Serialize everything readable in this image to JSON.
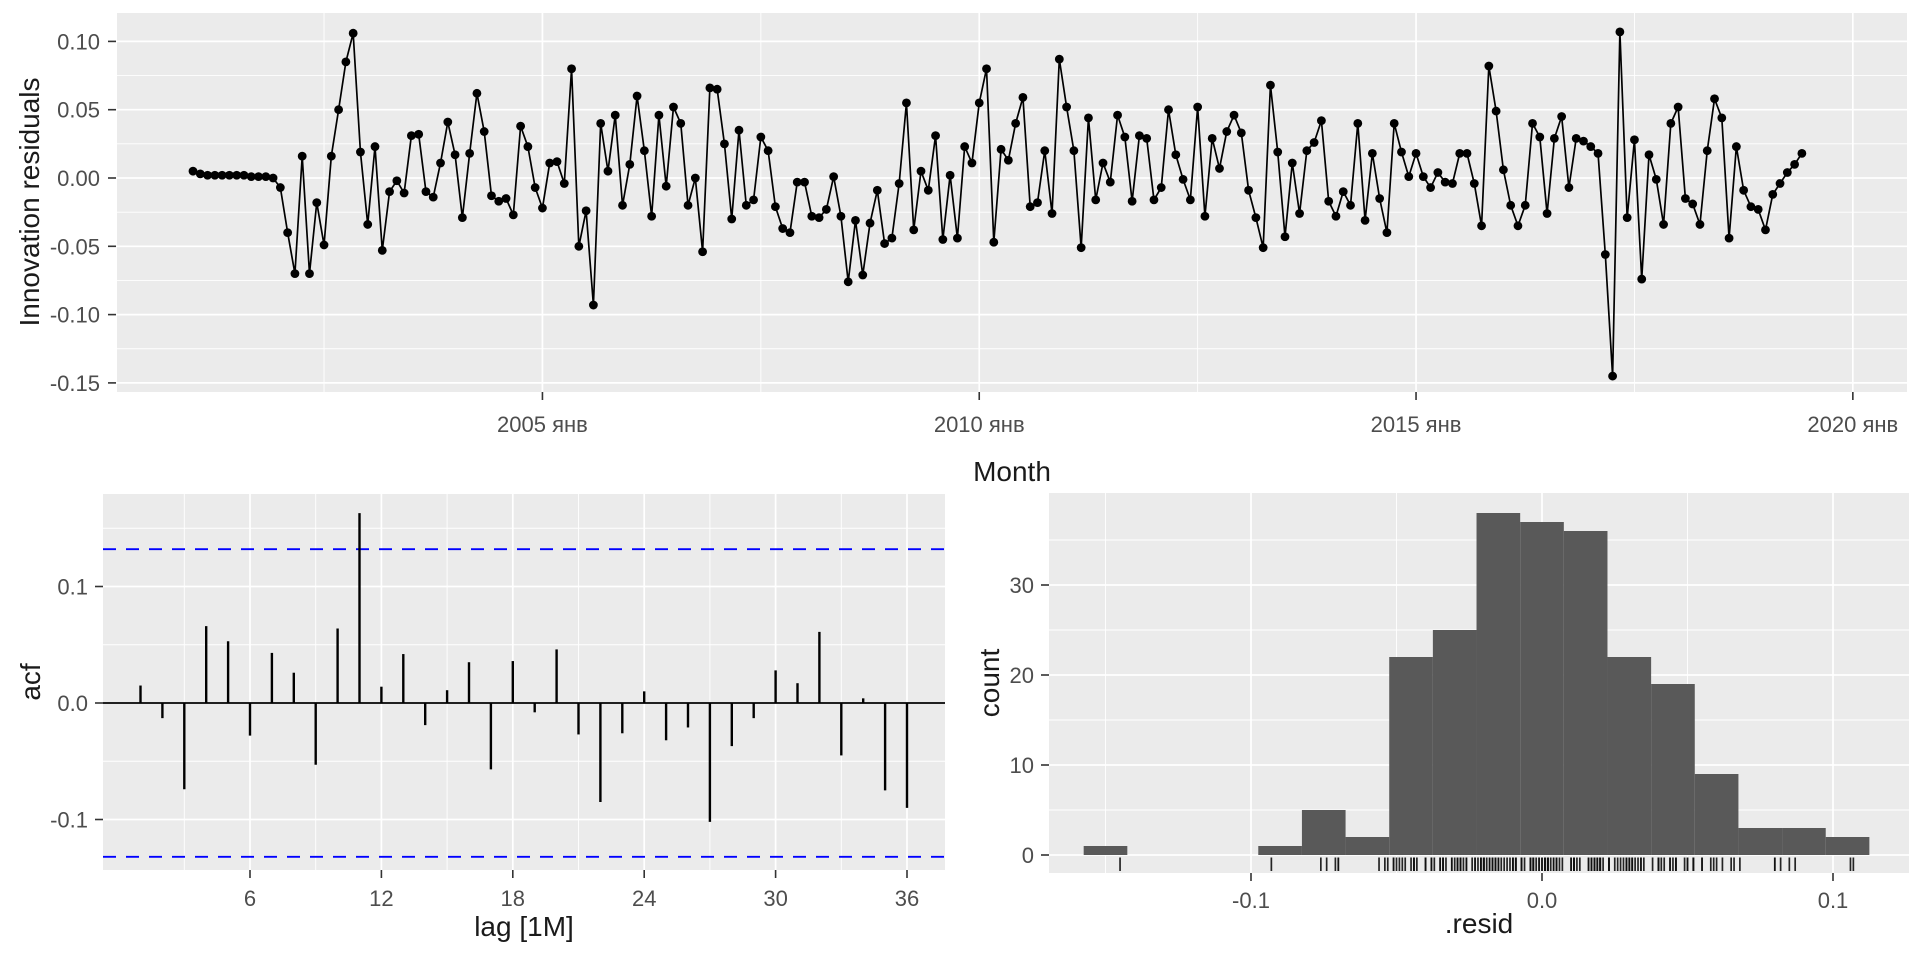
{
  "colors": {
    "panel_bg": "#EBEBEB",
    "grid": "#FFFFFF",
    "series_line": "#000000",
    "series_point": "#000000",
    "acf_bar": "#000000",
    "acf_zero_line": "#000000",
    "confidence_line": "#0000FF",
    "hist_fill": "#595959",
    "rug": "#101010",
    "tick_mark": "#333333",
    "tick_label": "#4D4D4D",
    "axis_title": "#1A1A1A"
  },
  "chart_data": [
    {
      "type": "line",
      "name": "innovation-residuals-series",
      "ylabel": "Innovation residuals",
      "xlabel": "Month",
      "x_start": "2001 Jan",
      "x_frequency": "monthly",
      "points_style": "line + black points",
      "grid": true,
      "x_ticks": [
        {
          "label": "2005 янв",
          "month_index": 48
        },
        {
          "label": "2010 янв",
          "month_index": 108
        },
        {
          "label": "2015 янв",
          "month_index": 168
        },
        {
          "label": "2020 янв",
          "month_index": 228
        }
      ],
      "x_minor_month_indices": [
        18,
        78,
        138,
        198
      ],
      "y_ticks": [
        "0.10",
        "0.05",
        "0.00",
        "-0.05",
        "-0.10",
        "-0.15"
      ],
      "y_minor": [
        0.075,
        0.025,
        -0.025,
        -0.075,
        -0.125
      ],
      "ylim": [
        -0.157,
        0.121
      ],
      "values": [
        0.005,
        0.003,
        0.002,
        0.002,
        0.002,
        0.002,
        0.002,
        0.002,
        0.001,
        0.001,
        0.001,
        0.0,
        -0.007,
        -0.04,
        -0.07,
        0.016,
        -0.07,
        -0.018,
        -0.049,
        0.016,
        0.05,
        0.085,
        0.106,
        0.019,
        -0.034,
        0.023,
        -0.053,
        -0.01,
        -0.002,
        -0.011,
        0.031,
        0.032,
        -0.01,
        -0.014,
        0.011,
        0.041,
        0.017,
        -0.029,
        0.018,
        0.062,
        0.034,
        -0.013,
        -0.017,
        -0.015,
        -0.027,
        0.038,
        0.023,
        -0.007,
        -0.022,
        0.011,
        0.012,
        -0.004,
        0.08,
        -0.05,
        -0.024,
        -0.093,
        0.04,
        0.005,
        0.046,
        -0.02,
        0.01,
        0.06,
        0.02,
        -0.028,
        0.046,
        -0.006,
        0.052,
        0.04,
        -0.02,
        0.0,
        -0.054,
        0.066,
        0.065,
        0.025,
        -0.03,
        0.035,
        -0.02,
        -0.016,
        0.03,
        0.02,
        -0.021,
        -0.037,
        -0.04,
        -0.003,
        -0.003,
        -0.028,
        -0.029,
        -0.023,
        0.001,
        -0.028,
        -0.076,
        -0.031,
        -0.071,
        -0.033,
        -0.009,
        -0.048,
        -0.044,
        -0.004,
        0.055,
        -0.038,
        0.005,
        -0.009,
        0.031,
        -0.045,
        0.002,
        -0.044,
        0.023,
        0.011,
        0.055,
        0.08,
        -0.047,
        0.021,
        0.013,
        0.04,
        0.059,
        -0.021,
        -0.018,
        0.02,
        -0.026,
        0.087,
        0.052,
        0.02,
        -0.051,
        0.044,
        -0.016,
        0.011,
        -0.003,
        0.046,
        0.03,
        -0.017,
        0.031,
        0.029,
        -0.016,
        -0.007,
        0.05,
        0.017,
        -0.001,
        -0.016,
        0.052,
        -0.028,
        0.029,
        0.007,
        0.034,
        0.046,
        0.033,
        -0.009,
        -0.029,
        -0.051,
        0.068,
        0.019,
        -0.043,
        0.011,
        -0.026,
        0.02,
        0.026,
        0.042,
        -0.017,
        -0.028,
        -0.01,
        -0.02,
        0.04,
        -0.031,
        0.018,
        -0.015,
        -0.04,
        0.04,
        0.019,
        0.001,
        0.018,
        0.001,
        -0.007,
        0.004,
        -0.003,
        -0.004,
        0.018,
        0.018,
        -0.004,
        -0.035,
        0.082,
        0.049,
        0.006,
        -0.02,
        -0.035,
        -0.02,
        0.04,
        0.03,
        -0.026,
        0.029,
        0.045,
        -0.007,
        0.029,
        0.027,
        0.023,
        0.018,
        -0.056,
        -0.145,
        0.107,
        -0.029,
        0.028,
        -0.074,
        0.017,
        -0.001,
        -0.034,
        0.04,
        0.052,
        -0.015,
        -0.019,
        -0.034,
        0.02,
        0.058,
        0.044,
        -0.044,
        0.023,
        -0.009,
        -0.021,
        -0.023,
        -0.038,
        -0.012,
        -0.004,
        0.004,
        0.01,
        0.018
      ]
    },
    {
      "type": "bar",
      "name": "acf-plot",
      "ylabel": "acf",
      "xlabel": "lag [1M]",
      "lag_start": 1,
      "confidence_bound": 0.132,
      "confidence_style": "blue dashed",
      "x_ticks": [
        "6",
        "12",
        "18",
        "24",
        "30",
        "36"
      ],
      "x_minor": [
        3,
        9,
        15,
        21,
        27,
        33
      ],
      "y_ticks": [
        "0.1",
        "0.0",
        "-0.1"
      ],
      "y_minor": [
        0.15,
        0.05,
        -0.05
      ],
      "ylim": [
        -0.144,
        0.179
      ],
      "values": [
        0.015,
        -0.013,
        -0.074,
        0.066,
        0.053,
        -0.028,
        0.043,
        0.026,
        -0.053,
        0.064,
        0.163,
        0.014,
        0.042,
        -0.019,
        0.011,
        0.035,
        -0.057,
        0.036,
        -0.008,
        0.046,
        -0.027,
        -0.085,
        -0.026,
        0.01,
        -0.032,
        -0.021,
        -0.102,
        -0.037,
        -0.013,
        0.028,
        0.017,
        0.061,
        -0.045,
        0.004,
        -0.075,
        -0.09
      ]
    },
    {
      "type": "histogram",
      "name": "residual-histogram",
      "ylabel": "count",
      "xlabel": ".resid",
      "bin_width": 0.015,
      "bins": [
        {
          "center": -0.15,
          "count": 1
        },
        {
          "center": -0.09,
          "count": 1
        },
        {
          "center": -0.075,
          "count": 5
        },
        {
          "center": -0.06,
          "count": 2
        },
        {
          "center": -0.045,
          "count": 22
        },
        {
          "center": -0.03,
          "count": 25
        },
        {
          "center": -0.015,
          "count": 38
        },
        {
          "center": 0.0,
          "count": 37
        },
        {
          "center": 0.015,
          "count": 36
        },
        {
          "center": 0.03,
          "count": 22
        },
        {
          "center": 0.045,
          "count": 19
        },
        {
          "center": 0.06,
          "count": 9
        },
        {
          "center": 0.075,
          "count": 3
        },
        {
          "center": 0.09,
          "count": 3
        },
        {
          "center": 0.105,
          "count": 2
        }
      ],
      "x_ticks": [
        "-0.1",
        "0.0",
        "0.1"
      ],
      "x_minor": [
        -0.15,
        -0.05,
        0.05
      ],
      "y_ticks": [
        "0",
        "10",
        "20",
        "30"
      ],
      "y_minor": [
        5,
        15,
        25,
        35
      ],
      "xlim": [
        -0.169,
        0.126
      ],
      "ylim": [
        0,
        40
      ],
      "rug": "one tick per residual value (see chart_data.0.values)"
    }
  ]
}
